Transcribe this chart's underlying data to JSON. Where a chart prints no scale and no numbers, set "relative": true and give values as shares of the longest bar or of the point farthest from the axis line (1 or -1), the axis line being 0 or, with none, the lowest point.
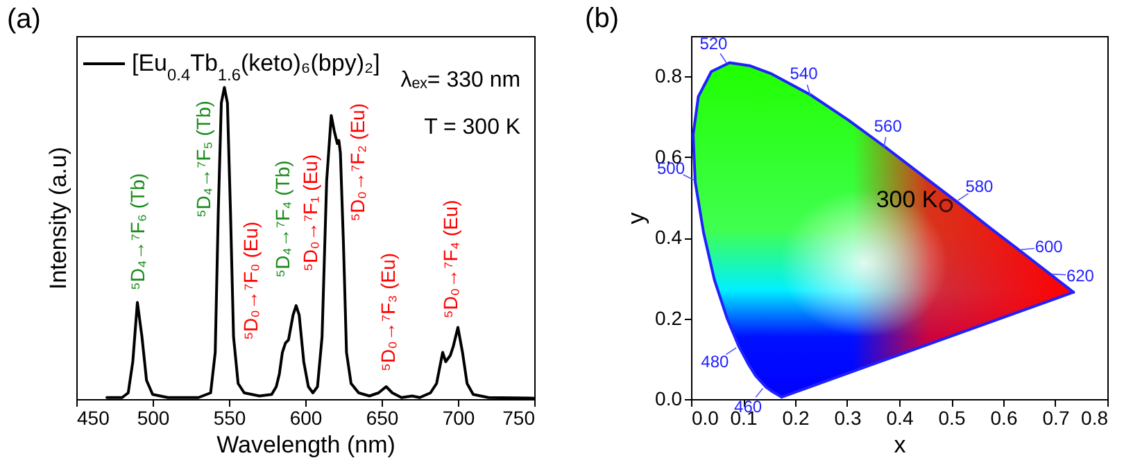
{
  "chart_data": [
    {
      "type": "line",
      "title": "(a)",
      "xlabel": "Wavelength (nm)",
      "ylabel": "Intensity (a.u)",
      "relative": true,
      "legend": "top left",
      "xlim": [
        450,
        750
      ],
      "xticks": [
        450,
        500,
        550,
        600,
        650,
        700,
        750
      ],
      "x": [
        470,
        480,
        484,
        487,
        490,
        493,
        496,
        500,
        510,
        530,
        538,
        541,
        543,
        545,
        547,
        549,
        551,
        553,
        556,
        560,
        570,
        578,
        581,
        583,
        585,
        587,
        589,
        592,
        594,
        596,
        599,
        602,
        605,
        608,
        611,
        614,
        617,
        619,
        621,
        622,
        623,
        625,
        627,
        630,
        635,
        642,
        648,
        653,
        657,
        663,
        670,
        675,
        682,
        686,
        690,
        692,
        695,
        697,
        700,
        703,
        706,
        710,
        720,
        750
      ],
      "series": [
        {
          "name": "[Eu$_{0.4}$Tb$_{1.6}$(keto)₆(bpy)₂]",
          "color": "#000000",
          "values": [
            0.005,
            0.005,
            0.02,
            0.12,
            0.31,
            0.2,
            0.06,
            0.015,
            0.005,
            0.005,
            0.02,
            0.15,
            0.6,
            0.95,
            1.0,
            0.95,
            0.6,
            0.2,
            0.05,
            0.02,
            0.01,
            0.015,
            0.04,
            0.08,
            0.15,
            0.18,
            0.19,
            0.27,
            0.3,
            0.27,
            0.12,
            0.04,
            0.02,
            0.04,
            0.2,
            0.7,
            0.91,
            0.86,
            0.82,
            0.83,
            0.79,
            0.5,
            0.15,
            0.05,
            0.02,
            0.01,
            0.02,
            0.04,
            0.02,
            0.005,
            0.01,
            0.005,
            0.02,
            0.05,
            0.15,
            0.12,
            0.14,
            0.17,
            0.23,
            0.15,
            0.05,
            0.015,
            0.005,
            0.003
          ]
        }
      ],
      "annotations": [
        "λₑₓ= 330 nm",
        "T = 300 K",
        "⁵D₄→⁷F₆ (Tb)",
        "⁵D₄→⁷F₅ (Tb)",
        "⁵D₀→⁷F₀ (Eu)",
        "⁵D₄→⁷F₄ (Tb)",
        "⁵D₀→⁷F₁ (Eu)",
        "⁵D₀→⁷F₂ (Eu)",
        "⁵D₀→⁷F₃ (Eu)",
        "⁵D₀→⁷F₄ (Eu)"
      ]
    },
    {
      "type": "scatter",
      "title": "(b)",
      "xlabel": "x",
      "ylabel": "y",
      "xlim": [
        0,
        0.8
      ],
      "xticks": [
        {
          "value": 0,
          "label": "0.0"
        },
        {
          "value": 0.1,
          "label": "0.1"
        },
        {
          "value": 0.2,
          "label": "0.2"
        },
        {
          "value": 0.3,
          "label": "0.3"
        },
        {
          "value": 0.4,
          "label": "0.4"
        },
        {
          "value": 0.5,
          "label": "0.5"
        },
        {
          "value": 0.6,
          "label": "0.6"
        },
        {
          "value": 0.7,
          "label": "0.7"
        },
        {
          "value": 0.8,
          "label": "0.8"
        }
      ],
      "ylim": [
        0,
        0.9
      ],
      "yticks": [
        {
          "value": 0,
          "label": "0.0"
        },
        {
          "value": 0.2,
          "label": "0.2"
        },
        {
          "value": 0.4,
          "label": "0.4"
        },
        {
          "value": 0.6,
          "label": "0.6"
        },
        {
          "value": 0.8,
          "label": "0.8"
        }
      ],
      "series": [
        {
          "type": "line",
          "color": "#2020ff",
          "x": [
            0.174,
            0.157,
            0.144,
            0.124,
            0.11,
            0.091,
            0.069,
            0.045,
            0.024,
            0.008,
            0.004,
            0.014,
            0.039,
            0.074,
            0.114,
            0.155,
            0.23,
            0.302,
            0.373,
            0.444,
            0.513,
            0.575,
            0.627,
            0.666,
            0.692,
            0.719,
            0.73,
            0.735
          ],
          "values": [
            0.005,
            0.018,
            0.03,
            0.058,
            0.087,
            0.133,
            0.201,
            0.295,
            0.413,
            0.538,
            0.655,
            0.75,
            0.812,
            0.834,
            0.826,
            0.806,
            0.754,
            0.692,
            0.625,
            0.555,
            0.487,
            0.424,
            0.373,
            0.334,
            0.308,
            0.281,
            0.27,
            0.265
          ]
        },
        {
          "type": "line",
          "color": "#2020ff",
          "x": [
            0.735,
            0.174
          ],
          "values": [
            0.265,
            0.005
          ]
        },
        {
          "color": "#000000",
          "x": [
            0.49
          ],
          "values": [
            0.48
          ]
        }
      ],
      "annotations": [
        {
          "text": "300 K",
          "x": 0.49,
          "y": 0.48
        },
        {
          "text": "460",
          "x": 0.14,
          "y": 0.03
        },
        {
          "text": "480",
          "x": 0.09,
          "y": 0.13
        },
        {
          "text": "500",
          "x": 0.01,
          "y": 0.54
        },
        {
          "text": "520",
          "x": 0.07,
          "y": 0.83
        },
        {
          "text": "540",
          "x": 0.23,
          "y": 0.75
        },
        {
          "text": "560",
          "x": 0.37,
          "y": 0.62
        },
        {
          "text": "580",
          "x": 0.51,
          "y": 0.49
        },
        {
          "text": "600",
          "x": 0.63,
          "y": 0.37
        },
        {
          "text": "620",
          "x": 0.69,
          "y": 0.31
        }
      ]
    }
  ]
}
